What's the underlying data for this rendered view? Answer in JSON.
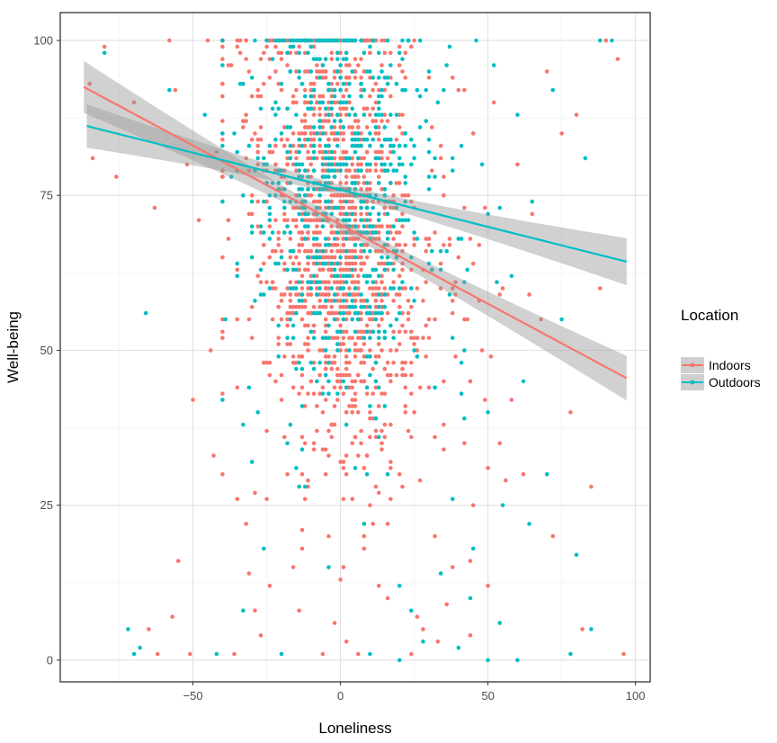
{
  "chart_data": {
    "type": "scatter",
    "title": "",
    "xlabel": "Loneliness",
    "ylabel": "Well-being",
    "xlim": [
      -95,
      105
    ],
    "ylim": [
      -3.5,
      104.5
    ],
    "x_ticks": [
      -50,
      0,
      50,
      100
    ],
    "x_tick_labels": [
      "−50",
      "0",
      "50",
      "100"
    ],
    "y_ticks": [
      0,
      25,
      50,
      75,
      100
    ],
    "y_tick_labels": [
      "0",
      "25",
      "50",
      "75",
      "100"
    ],
    "grid": true,
    "legend": {
      "title": "Location",
      "placement": "right"
    },
    "series": [
      {
        "name": "Indoors",
        "color": "#F8766D",
        "trend": {
          "x": [
            -87,
            97
          ],
          "y": [
            92.5,
            45.5
          ]
        },
        "points": [
          [
            -80,
            99
          ],
          [
            -85,
            93
          ],
          [
            -84,
            81
          ],
          [
            -76,
            78
          ],
          [
            -70,
            90
          ],
          [
            -58,
            100
          ],
          [
            -63,
            73
          ],
          [
            -56,
            92
          ],
          [
            -52,
            80
          ],
          [
            -45,
            100
          ],
          [
            -48,
            71
          ],
          [
            -42,
            82
          ],
          [
            -38,
            68
          ],
          [
            -44,
            50
          ],
          [
            -50,
            42
          ],
          [
            -43,
            33
          ],
          [
            -40,
            30
          ],
          [
            -35,
            26
          ],
          [
            -32,
            22
          ],
          [
            -55,
            16
          ],
          [
            -57,
            7
          ],
          [
            -62,
            1
          ],
          [
            -51,
            1
          ],
          [
            -36,
            1
          ],
          [
            -65,
            5
          ],
          [
            -30,
            84
          ],
          [
            -28,
            62
          ],
          [
            -26,
            48
          ],
          [
            -25,
            37
          ],
          [
            -22,
            45
          ],
          [
            -20,
            55
          ],
          [
            -18,
            30
          ],
          [
            -16,
            15
          ],
          [
            -14,
            8
          ],
          [
            -12,
            90
          ],
          [
            -10,
            60
          ],
          [
            -8,
            70
          ],
          [
            -6,
            40
          ],
          [
            -4,
            20
          ],
          [
            -2,
            85
          ],
          [
            0,
            75
          ],
          [
            2,
            55
          ],
          [
            4,
            35
          ],
          [
            6,
            65
          ],
          [
            8,
            45
          ],
          [
            10,
            25
          ],
          [
            12,
            80
          ],
          [
            14,
            50
          ],
          [
            16,
            10
          ],
          [
            18,
            70
          ],
          [
            20,
            30
          ],
          [
            22,
            60
          ],
          [
            25,
            40
          ],
          [
            28,
            5
          ],
          [
            30,
            55
          ],
          [
            32,
            20
          ],
          [
            35,
            45
          ],
          [
            38,
            15
          ],
          [
            40,
            65
          ],
          [
            42,
            35
          ],
          [
            45,
            25
          ],
          [
            48,
            50
          ],
          [
            50,
            12
          ],
          [
            52,
            90
          ],
          [
            55,
            60
          ],
          [
            58,
            42
          ],
          [
            60,
            80
          ],
          [
            62,
            30
          ],
          [
            65,
            72
          ],
          [
            68,
            55
          ],
          [
            70,
            95
          ],
          [
            72,
            20
          ],
          [
            75,
            85
          ],
          [
            78,
            40
          ],
          [
            80,
            88
          ],
          [
            82,
            5
          ],
          [
            85,
            28
          ],
          [
            88,
            60
          ],
          [
            90,
            100
          ],
          [
            94,
            97
          ],
          [
            96,
            1
          ],
          [
            -15,
            75
          ],
          [
            -5,
            95
          ],
          [
            5,
            88
          ],
          [
            15,
            92
          ],
          [
            25,
            100
          ],
          [
            35,
            78
          ],
          [
            45,
            85
          ],
          [
            -20,
            92
          ],
          [
            -10,
            100
          ],
          [
            0,
            100
          ],
          [
            10,
            98
          ],
          [
            20,
            96
          ],
          [
            30,
            94
          ],
          [
            40,
            92
          ],
          [
            -3,
            62
          ],
          [
            3,
            68
          ],
          [
            -7,
            58
          ],
          [
            7,
            52
          ],
          [
            -1,
            47
          ],
          [
            1,
            43
          ],
          [
            -9,
            35
          ],
          [
            9,
            33
          ],
          [
            -11,
            28
          ],
          [
            11,
            22
          ],
          [
            -13,
            18
          ],
          [
            13,
            12
          ],
          [
            -2,
            6
          ],
          [
            2,
            3
          ],
          [
            -6,
            1
          ],
          [
            6,
            1
          ],
          [
            24,
            1
          ],
          [
            26,
            7
          ],
          [
            33,
            3
          ],
          [
            36,
            9
          ],
          [
            44,
            4
          ],
          [
            -24,
            12
          ],
          [
            -27,
            4
          ],
          [
            -29,
            8
          ],
          [
            -31,
            14
          ]
        ]
      },
      {
        "name": "Outdoors",
        "color": "#00BFC4",
        "trend": {
          "x": [
            -86,
            97
          ],
          "y": [
            86.2,
            64.3
          ]
        },
        "points": [
          [
            -80,
            98
          ],
          [
            -58,
            92
          ],
          [
            -46,
            88
          ],
          [
            -66,
            56
          ],
          [
            -72,
            5
          ],
          [
            -68,
            2
          ],
          [
            -70,
            1
          ],
          [
            -42,
            1
          ],
          [
            -33,
            8
          ],
          [
            -28,
            40
          ],
          [
            -24,
            75
          ],
          [
            -20,
            65
          ],
          [
            -18,
            35
          ],
          [
            -16,
            52
          ],
          [
            -14,
            82
          ],
          [
            -12,
            28
          ],
          [
            -10,
            90
          ],
          [
            -8,
            45
          ],
          [
            -6,
            70
          ],
          [
            -4,
            15
          ],
          [
            -2,
            62
          ],
          [
            0,
            80
          ],
          [
            2,
            38
          ],
          [
            4,
            95
          ],
          [
            6,
            55
          ],
          [
            8,
            22
          ],
          [
            10,
            72
          ],
          [
            12,
            48
          ],
          [
            14,
            88
          ],
          [
            16,
            30
          ],
          [
            18,
            66
          ],
          [
            20,
            12
          ],
          [
            22,
            78
          ],
          [
            25,
            58
          ],
          [
            28,
            3
          ],
          [
            30,
            84
          ],
          [
            32,
            44
          ],
          [
            35,
            92
          ],
          [
            38,
            26
          ],
          [
            40,
            68
          ],
          [
            42,
            50
          ],
          [
            45,
            18
          ],
          [
            48,
            80
          ],
          [
            50,
            40
          ],
          [
            52,
            96
          ],
          [
            55,
            25
          ],
          [
            58,
            62
          ],
          [
            60,
            88
          ],
          [
            62,
            45
          ],
          [
            65,
            74
          ],
          [
            70,
            30
          ],
          [
            72,
            92
          ],
          [
            75,
            55
          ],
          [
            78,
            1
          ],
          [
            80,
            17
          ],
          [
            83,
            81
          ],
          [
            85,
            5
          ],
          [
            88,
            100
          ],
          [
            92,
            100
          ],
          [
            60,
            0
          ],
          [
            50,
            0
          ],
          [
            20,
            0
          ],
          [
            10,
            1
          ],
          [
            -20,
            1
          ],
          [
            40,
            2
          ],
          [
            -30,
            32
          ],
          [
            -26,
            18
          ],
          [
            24,
            8
          ],
          [
            34,
            14
          ],
          [
            44,
            10
          ],
          [
            54,
            6
          ],
          [
            64,
            22
          ]
        ]
      }
    ]
  }
}
